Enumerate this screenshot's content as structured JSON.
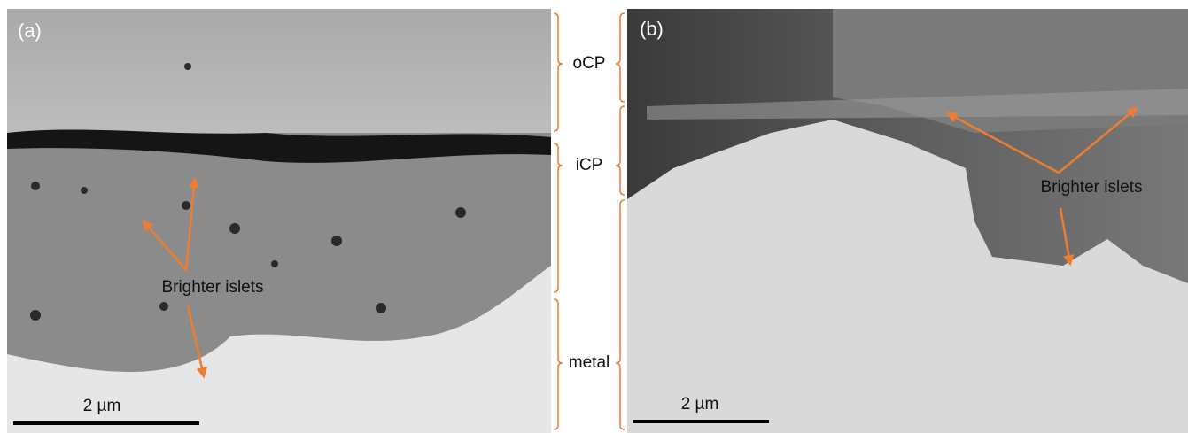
{
  "panels": [
    {
      "label": "(a)",
      "annotation": "Brighter islets",
      "scale_bar": "2 µm"
    },
    {
      "label": "(b)",
      "annotation": "Brighter islets",
      "scale_bar": "2 µm"
    }
  ],
  "layers": [
    "oCP",
    "iCP",
    "metal"
  ]
}
